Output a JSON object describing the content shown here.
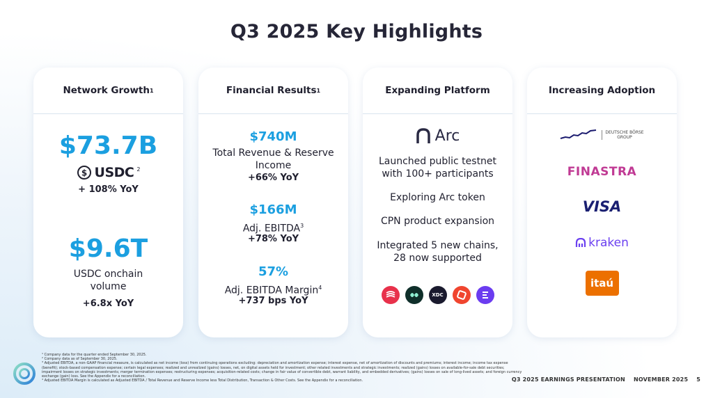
{
  "page": {
    "title": "Q3 2025 Key Highlights"
  },
  "cards": {
    "network": {
      "header": "Network Growth",
      "header_sup": "1",
      "value1": "$73.7B",
      "usdc_label": "USDC",
      "usdc_sup": "2",
      "value1_growth": "+ 108% YoY",
      "value2": "$9.6T",
      "value2_label_line1": "USDC onchain",
      "value2_label_line2": "volume",
      "value2_growth": "+6.8x YoY"
    },
    "financial": {
      "header": "Financial Results",
      "header_sup": "1",
      "m1_value": "$740M",
      "m1_label_line1": "Total Revenue & Reserve",
      "m1_label_line2": "Income",
      "m1_growth": "+66% YoY",
      "m2_value": "$166M",
      "m2_label": "Adj. EBITDA",
      "m2_sup": "3",
      "m2_growth": "+78% YoY",
      "m3_value": "57%",
      "m3_label": "Adj. EBITDA Margin",
      "m3_sup": "4",
      "m3_growth": "+737 bps YoY"
    },
    "platform": {
      "header": "Expanding Platform",
      "arc_label": "Arc",
      "item1_line1": "Launched public testnet",
      "item1_line2": "with 100+ participants",
      "item2": "Exploring Arc token",
      "item3": "CPN product expansion",
      "item4_line1": "Integrated 5 new chains,",
      "item4_line2": "28 now supported",
      "chain_icons": [
        "sei-icon",
        "hyperliquid-icon",
        "xdc-icon",
        "plume-icon",
        "linea-icon"
      ],
      "xdc_text": "XDC"
    },
    "adoption": {
      "header": "Increasing Adoption",
      "db_line1": "DEUTSCHE BÖRSE",
      "db_line2": "GROUP",
      "finastra": "FINASTRA",
      "visa": "VISA",
      "kraken": "kraken",
      "itau": "itaú"
    }
  },
  "footnotes": [
    "¹ Company data for the quarter ended September 30, 2025.",
    "² Company data as of September 30, 2025.",
    "³ Adjusted EBITDA, a non-GAAP financial measure, is calculated as net income (loss) from continuing operations excluding: depreciation and amortization expense; interest expense, net of amortization of discounts and premiums; interest income; income tax expense (benefit); stock-based compensation expense; certain legal expenses; realized and unrealized (gains) losses, net, on digital assets held for investment; other related investments and strategic investments; realized (gains) losses on available-for-sale debt securities; impairment losses on strategic investments; merger termination expenses; restructuring expenses; acquisition-related costs; change in fair value of convertible debt, warrant liability, and embedded derivatives; (gains) losses on sale of long-lived assets; and foreign currency exchange (gain) loss. See the Appendix for a reconciliation.",
    "⁴ Adjusted EBITDA Margin is calculated as Adjusted EBITDA / Total Revenue and Reserve Income less Total Distribution, Transaction & Other Costs. See the Appendix for a reconciliation."
  ],
  "footer": {
    "presentation": "Q3 2025 EARNINGS PRESENTATION",
    "date": "NOVEMBER 2025",
    "page": "5"
  },
  "colors": {
    "accent": "#1b9fe0",
    "finastra": "#c03a94",
    "visa": "#1a1f71",
    "kraken": "#6b40f0",
    "itau": "#ec7000"
  }
}
